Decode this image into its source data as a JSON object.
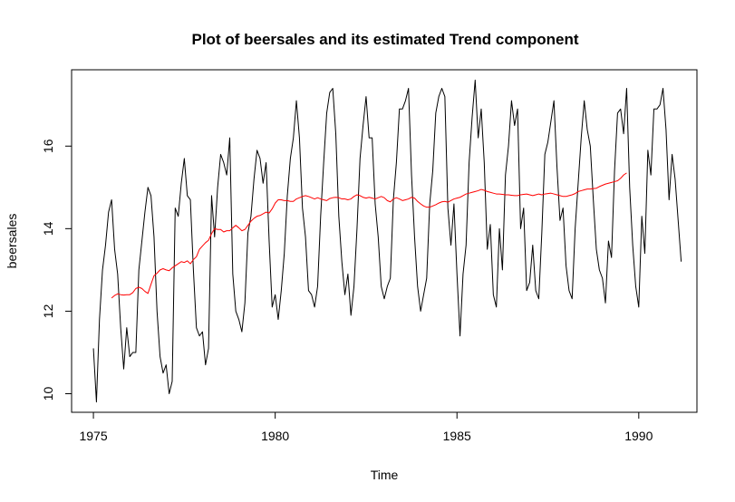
{
  "chart_data": {
    "type": "line",
    "title": "Plot of beersales and its estimated Trend component",
    "xlabel": "Time",
    "ylabel": "beersales",
    "xlim": [
      1974.4,
      1991.6
    ],
    "ylim": [
      9.55,
      17.85
    ],
    "x_ticks": [
      1975,
      1980,
      1985,
      1990
    ],
    "x_tick_labels": [
      "1975",
      "1980",
      "1985",
      "1990"
    ],
    "y_ticks": [
      10,
      12,
      14,
      16
    ],
    "y_tick_labels": [
      "10",
      "12",
      "14",
      "16"
    ],
    "grid": false,
    "series": [
      {
        "name": "beersales",
        "color": "#000000",
        "start": 1975.0,
        "frequency": 12,
        "values": [
          11.1,
          9.8,
          11.8,
          13.0,
          13.6,
          14.4,
          14.7,
          13.5,
          12.9,
          11.6,
          10.6,
          11.6,
          10.9,
          11.0,
          11.0,
          13.0,
          13.7,
          14.4,
          15.0,
          14.8,
          13.8,
          12.0,
          10.9,
          10.5,
          10.7,
          10.0,
          10.3,
          14.5,
          14.3,
          15.1,
          15.7,
          14.8,
          14.7,
          13.0,
          11.6,
          11.4,
          11.5,
          10.7,
          11.1,
          14.8,
          13.8,
          15.0,
          15.8,
          15.6,
          15.3,
          16.2,
          12.9,
          12.0,
          11.8,
          11.5,
          12.2,
          13.9,
          14.3,
          15.2,
          15.9,
          15.7,
          15.1,
          15.6,
          13.7,
          12.1,
          12.4,
          11.8,
          12.5,
          13.4,
          14.8,
          15.7,
          16.2,
          17.1,
          16.2,
          14.5,
          13.8,
          12.5,
          12.4,
          12.1,
          12.6,
          14.3,
          15.6,
          16.8,
          17.3,
          17.4,
          16.3,
          14.3,
          13.2,
          12.4,
          12.9,
          11.9,
          12.6,
          14.0,
          15.7,
          16.5,
          17.2,
          16.2,
          16.2,
          14.6,
          13.8,
          12.6,
          12.3,
          12.6,
          12.8,
          14.7,
          15.6,
          16.9,
          16.9,
          17.1,
          17.4,
          15.3,
          13.8,
          12.6,
          12.0,
          12.4,
          12.8,
          14.6,
          15.4,
          16.8,
          17.2,
          17.4,
          17.2,
          14.5,
          13.6,
          14.6,
          12.9,
          11.4,
          12.9,
          13.6,
          15.6,
          16.7,
          17.6,
          16.2,
          16.9,
          15.6,
          13.5,
          14.1,
          12.4,
          12.1,
          14.0,
          13.0,
          15.3,
          16.0,
          17.1,
          16.5,
          16.9,
          14.0,
          14.5,
          12.5,
          12.7,
          13.6,
          12.5,
          12.3,
          13.9,
          15.8,
          16.1,
          16.6,
          17.1,
          15.5,
          14.2,
          14.5,
          13.1,
          12.5,
          12.3,
          14.0,
          15.1,
          16.2,
          17.1,
          16.4,
          16.0,
          14.7,
          13.5,
          13.0,
          12.8,
          12.2,
          13.7,
          13.3,
          15.4,
          16.8,
          16.9,
          16.3,
          17.4,
          15.0,
          13.6,
          12.6,
          12.1,
          14.3,
          13.4,
          15.9,
          15.3,
          16.9,
          16.9,
          17.0,
          17.4,
          16.4,
          14.7,
          15.8,
          15.2,
          14.2,
          13.2
        ]
      },
      {
        "name": "Trend",
        "color": "#ff0000",
        "start": 1975.5,
        "frequency": 12,
        "values": [
          12.32,
          12.38,
          12.42,
          12.4,
          12.39,
          12.4,
          12.4,
          12.45,
          12.55,
          12.58,
          12.55,
          12.48,
          12.43,
          12.65,
          12.86,
          12.92,
          13.0,
          13.03,
          13.0,
          12.98,
          13.05,
          13.1,
          13.15,
          13.2,
          13.18,
          13.22,
          13.15,
          13.25,
          13.32,
          13.5,
          13.58,
          13.66,
          13.72,
          13.88,
          14.0,
          13.98,
          13.98,
          13.92,
          13.95,
          13.95,
          14.02,
          14.08,
          14.02,
          13.95,
          13.98,
          14.08,
          14.18,
          14.25,
          14.3,
          14.32,
          14.36,
          14.4,
          14.38,
          14.48,
          14.62,
          14.7,
          14.7,
          14.68,
          14.68,
          14.66,
          14.66,
          14.72,
          14.75,
          14.78,
          14.8,
          14.78,
          14.75,
          14.72,
          14.75,
          14.72,
          14.7,
          14.68,
          14.73,
          14.75,
          14.76,
          14.75,
          14.72,
          14.72,
          14.7,
          14.72,
          14.78,
          14.82,
          14.8,
          14.76,
          14.74,
          14.76,
          14.74,
          14.72,
          14.75,
          14.78,
          14.75,
          14.68,
          14.65,
          14.72,
          14.75,
          14.72,
          14.68,
          14.7,
          14.72,
          14.76,
          14.74,
          14.66,
          14.6,
          14.55,
          14.52,
          14.52,
          14.55,
          14.58,
          14.62,
          14.65,
          14.66,
          14.64,
          14.68,
          14.72,
          14.74,
          14.76,
          14.8,
          14.84,
          14.86,
          14.88,
          14.9,
          14.92,
          14.95,
          14.93,
          14.9,
          14.88,
          14.86,
          14.84,
          14.84,
          14.83,
          14.82,
          14.82,
          14.81,
          14.8,
          14.8,
          14.82,
          14.83,
          14.84,
          14.82,
          14.8,
          14.82,
          14.84,
          14.82,
          14.84,
          14.85,
          14.86,
          14.84,
          14.82,
          14.8,
          14.78,
          14.78,
          14.8,
          14.82,
          14.85,
          14.9,
          14.92,
          14.94,
          14.96,
          14.96,
          14.97,
          14.98,
          15.02,
          15.05,
          15.08,
          15.1,
          15.12,
          15.14,
          15.16,
          15.22,
          15.3,
          15.35
        ]
      }
    ]
  }
}
